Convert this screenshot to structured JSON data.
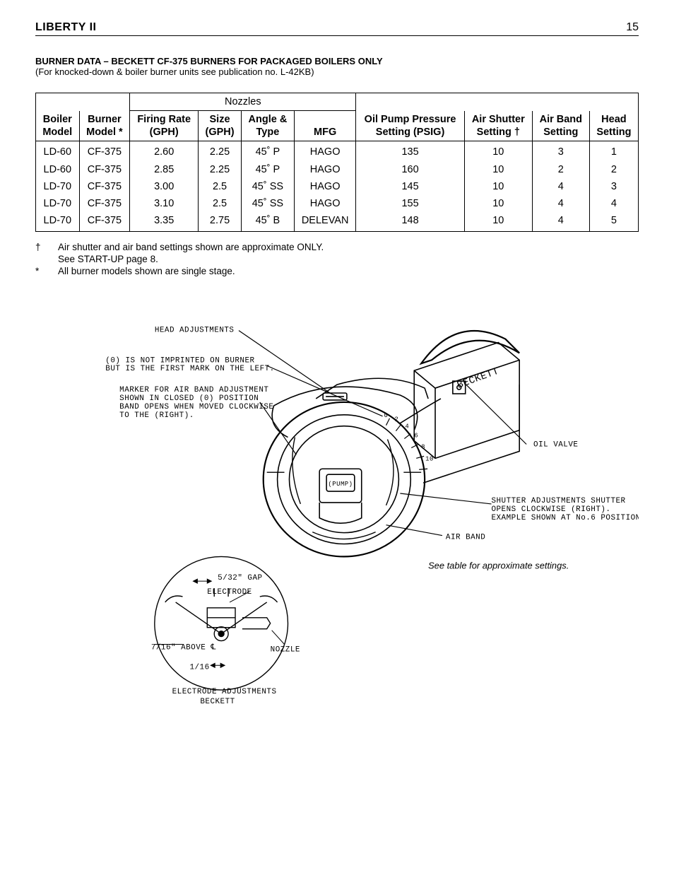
{
  "header": {
    "title": "LIBERTY II",
    "page_number": "15"
  },
  "section": {
    "title": "BURNER DATA – BECKETT CF-375 BURNERS FOR PACKAGED BOILERS ONLY",
    "subtitle": "(For knocked-down & boiler burner units see publication no. L-42KB)"
  },
  "table": {
    "nozzles_label": "Nozzles",
    "columns": {
      "boiler_model": [
        "Boiler",
        "Model"
      ],
      "burner_model": [
        "Burner",
        "Model *"
      ],
      "firing_rate": [
        "Firing Rate",
        "(GPH)"
      ],
      "size": [
        "Size",
        "(GPH)"
      ],
      "angle_type": [
        "Angle &",
        "Type"
      ],
      "mfg": [
        "MFG"
      ],
      "oil_pump": [
        "Oil Pump Pressure",
        "Setting (PSIG)"
      ],
      "air_shutter": [
        "Air Shutter",
        "Setting †"
      ],
      "air_band": [
        "Air Band",
        "Setting"
      ],
      "head": [
        "Head",
        "Setting"
      ]
    },
    "rows": [
      {
        "boiler": "LD-60",
        "burner": "CF-375",
        "firing": "2.60",
        "size": "2.25",
        "angle": "45˚ P",
        "mfg": "HAGO",
        "pump": "135",
        "shutter": "10",
        "band": "3",
        "head": "1"
      },
      {
        "boiler": "LD-60",
        "burner": "CF-375",
        "firing": "2.85",
        "size": "2.25",
        "angle": "45˚ P",
        "mfg": "HAGO",
        "pump": "160",
        "shutter": "10",
        "band": "2",
        "head": "2"
      },
      {
        "boiler": "LD-70",
        "burner": "CF-375",
        "firing": "3.00",
        "size": "2.5",
        "angle": "45˚ SS",
        "mfg": "HAGO",
        "pump": "145",
        "shutter": "10",
        "band": "4",
        "head": "3"
      },
      {
        "boiler": "LD-70",
        "burner": "CF-375",
        "firing": "3.10",
        "size": "2.5",
        "angle": "45˚ SS",
        "mfg": "HAGO",
        "pump": "155",
        "shutter": "10",
        "band": "4",
        "head": "4"
      },
      {
        "boiler": "LD-70",
        "burner": "CF-375",
        "firing": "3.35",
        "size": "2.75",
        "angle": "45˚ B",
        "mfg": "DELEVAN",
        "pump": "148",
        "shutter": "10",
        "band": "4",
        "head": "5"
      }
    ]
  },
  "footnotes": [
    {
      "sym": "†",
      "lines": [
        "Air shutter and air band settings shown are approximate ONLY.",
        "See START-UP page 8."
      ]
    },
    {
      "sym": "*",
      "lines": [
        "All burner models shown are single stage."
      ]
    }
  ],
  "diagram": {
    "labels": {
      "head_adj": "HEAD ADJUSTMENTS",
      "zero_note": "(0) IS NOT IMPRINTED ON BURNER\nBUT IS THE FIRST MARK ON THE LEFT.",
      "marker_note": "MARKER FOR AIR BAND ADJUSTMENT\nSHOWN IN CLOSED (0) POSITION\nBAND OPENS WHEN MOVED CLOCKWISE\nTO THE (RIGHT).",
      "oil_valve": "OIL VALVE",
      "shutter_note": "SHUTTER ADJUSTMENTS SHUTTER\nOPENS CLOCKWISE (RIGHT).\nEXAMPLE SHOWN AT No.6 POSITION.",
      "air_band": "AIR BAND",
      "pump": "(PUMP)",
      "brand": "BECKETT",
      "dial_nums": "0 2 4 6 8 10",
      "gap": "5/32\" GAP",
      "electrode": "ELECTRODE",
      "above": "7/16\" ABOVE ℄",
      "one_sixteen": "1/16",
      "nozzle": "NOZZLE",
      "elec_adj": "ELECTRODE ADJUSTMENTS",
      "beckett_small": "BECKETT"
    },
    "see_table": "See table for approximate settings.",
    "styling": {
      "stroke": "#000000",
      "stroke_width_main": 1.6,
      "stroke_width_heavy": 2.2,
      "label_font_family": "Courier New, monospace",
      "label_font_size": 11,
      "label_font_size_small": 10
    }
  }
}
